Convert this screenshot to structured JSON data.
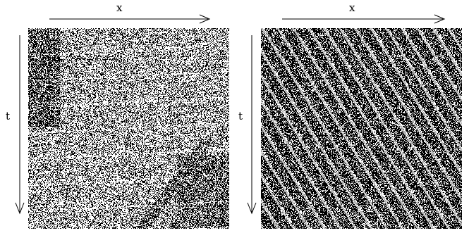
{
  "panels": [
    {
      "x_label": "x",
      "t_label": "t",
      "pattern": "sparse-light-with-dark-defect-streaks"
    },
    {
      "x_label": "x",
      "t_label": "t",
      "pattern": "dense-dark-diagonal-stripes"
    }
  ],
  "colors": {
    "ink": "#000000",
    "paper": "#ffffff",
    "gray": "#b4b4b4"
  }
}
